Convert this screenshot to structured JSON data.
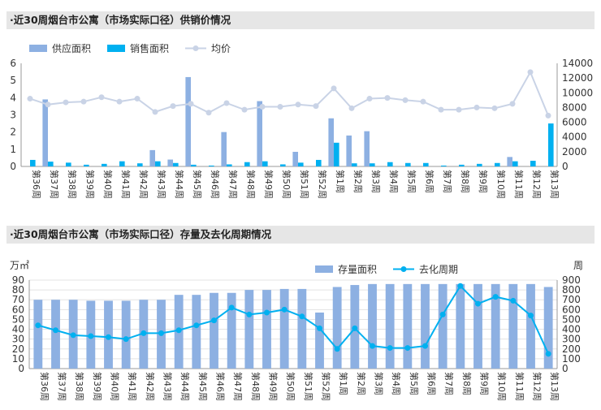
{
  "titles": {
    "chart1": "·近30周烟台市公寓（市场实际口径）供销价情况",
    "chart2": "·近30周烟台市公寓（市场实际口径）存量及去化周期情况"
  },
  "colors": {
    "supply": "#8db0e2",
    "sales": "#00b0f0",
    "price": "#c9d3e6",
    "stock": "#8db0e2",
    "cycle": "#00b0f0"
  },
  "chart_data": [
    {
      "type": "bar",
      "categories": [
        "第36周",
        "第37周",
        "第38周",
        "第39周",
        "第40周",
        "第41周",
        "第42周",
        "第43周",
        "第44周",
        "第45周",
        "第46周",
        "第47周",
        "第48周",
        "第49周",
        "第50周",
        "第51周",
        "第52周",
        "第1周",
        "第2周",
        "第3周",
        "第4周",
        "第5周",
        "第6周",
        "第7周",
        "第8周",
        "第9周",
        "第10周",
        "第11周",
        "第12周",
        "第13周"
      ],
      "series": [
        {
          "name": "供应面积",
          "kind": "bar",
          "axis": "left",
          "values": [
            0,
            3.9,
            0,
            0,
            0,
            0,
            0,
            0.95,
            0.4,
            5.2,
            0,
            2.0,
            0,
            3.8,
            0,
            0.85,
            0,
            2.8,
            1.8,
            2.05,
            0,
            0,
            0,
            0,
            0,
            0,
            0,
            0.55,
            0,
            0
          ]
        },
        {
          "name": "销售面积",
          "kind": "bar",
          "axis": "left",
          "values": [
            0.38,
            0.28,
            0.22,
            0.1,
            0.15,
            0.3,
            0.18,
            0.3,
            0.2,
            0.1,
            0.05,
            0.12,
            0.25,
            0.3,
            0.12,
            0.22,
            0.38,
            1.38,
            0.18,
            0.18,
            0.25,
            0.2,
            0.2,
            0.05,
            0.1,
            0.15,
            0.2,
            0.3,
            0.33,
            2.5
          ]
        },
        {
          "name": "均价",
          "kind": "line",
          "axis": "right",
          "values": [
            9200,
            8400,
            8700,
            8800,
            9400,
            8800,
            9200,
            7400,
            8200,
            8500,
            7300,
            8600,
            7700,
            8100,
            8100,
            8400,
            8200,
            10600,
            7900,
            9200,
            9300,
            9000,
            8800,
            7700,
            7700,
            8000,
            7900,
            8500,
            12800,
            6900
          ]
        }
      ],
      "yleft": {
        "min": 0,
        "max": 6,
        "ticks": [
          0,
          1,
          2,
          3,
          4,
          5,
          6
        ]
      },
      "yright": {
        "min": 0,
        "max": 14000,
        "ticks": [
          0,
          2000,
          4000,
          6000,
          8000,
          10000,
          12000,
          14000
        ]
      },
      "legend_position": "top-left",
      "grid": false
    },
    {
      "type": "bar",
      "categories": [
        "第36周",
        "第37周",
        "第38周",
        "第39周",
        "第40周",
        "第41周",
        "第42周",
        "第43周",
        "第44周",
        "第45周",
        "第46周",
        "第47周",
        "第48周",
        "第49周",
        "第50周",
        "第51周",
        "第52周",
        "第1周",
        "第2周",
        "第3周",
        "第4周",
        "第5周",
        "第6周",
        "第7周",
        "第8周",
        "第9周",
        "第10周",
        "第11周",
        "第12周",
        "第13周"
      ],
      "ylabel_left": "万㎡",
      "ylabel_right": "周",
      "series": [
        {
          "name": "存量面积",
          "kind": "bar",
          "axis": "left",
          "values": [
            70,
            70,
            70,
            69,
            69,
            69,
            70,
            70,
            75,
            75,
            77,
            77,
            80,
            80,
            81,
            81,
            57,
            83,
            85,
            86,
            86,
            86,
            86,
            86,
            86,
            86,
            86,
            86,
            86,
            83
          ]
        },
        {
          "name": "去化周期",
          "kind": "line",
          "axis": "right",
          "values": [
            440,
            390,
            340,
            330,
            320,
            300,
            360,
            360,
            390,
            440,
            490,
            620,
            550,
            570,
            600,
            530,
            410,
            200,
            410,
            230,
            210,
            210,
            230,
            550,
            840,
            660,
            730,
            690,
            540,
            150
          ]
        }
      ],
      "yleft": {
        "min": 0,
        "max": 90,
        "ticks": [
          0,
          10,
          20,
          30,
          40,
          50,
          60,
          70,
          80,
          90
        ]
      },
      "yright": {
        "min": 0,
        "max": 900,
        "ticks": [
          0,
          100,
          200,
          300,
          400,
          500,
          600,
          700,
          800,
          900
        ]
      },
      "legend_position": "top-right",
      "grid": true
    }
  ]
}
